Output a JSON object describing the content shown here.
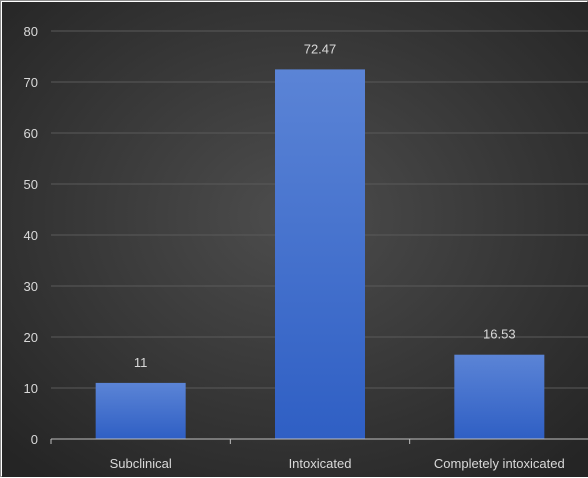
{
  "chart_data": {
    "type": "bar",
    "categories": [
      "Subclinical",
      "Intoxicated",
      "Completely intoxicated"
    ],
    "values": [
      11,
      72.47,
      16.53
    ],
    "data_labels": [
      "11",
      "72.47",
      "16.53"
    ],
    "title": "",
    "xlabel": "",
    "ylabel": "",
    "ylim": [
      0,
      80
    ],
    "yticks": [
      0,
      10,
      20,
      30,
      40,
      50,
      60,
      70,
      80
    ],
    "grid": true,
    "legend": "none",
    "colors": {
      "bar_top": "#5b84d6",
      "bar_bottom": "#2f5fc4",
      "background_center": "#4d4d4d",
      "background_edge": "#252525",
      "gridline": "#5a5a5a",
      "text": "#d9d9d9"
    }
  }
}
